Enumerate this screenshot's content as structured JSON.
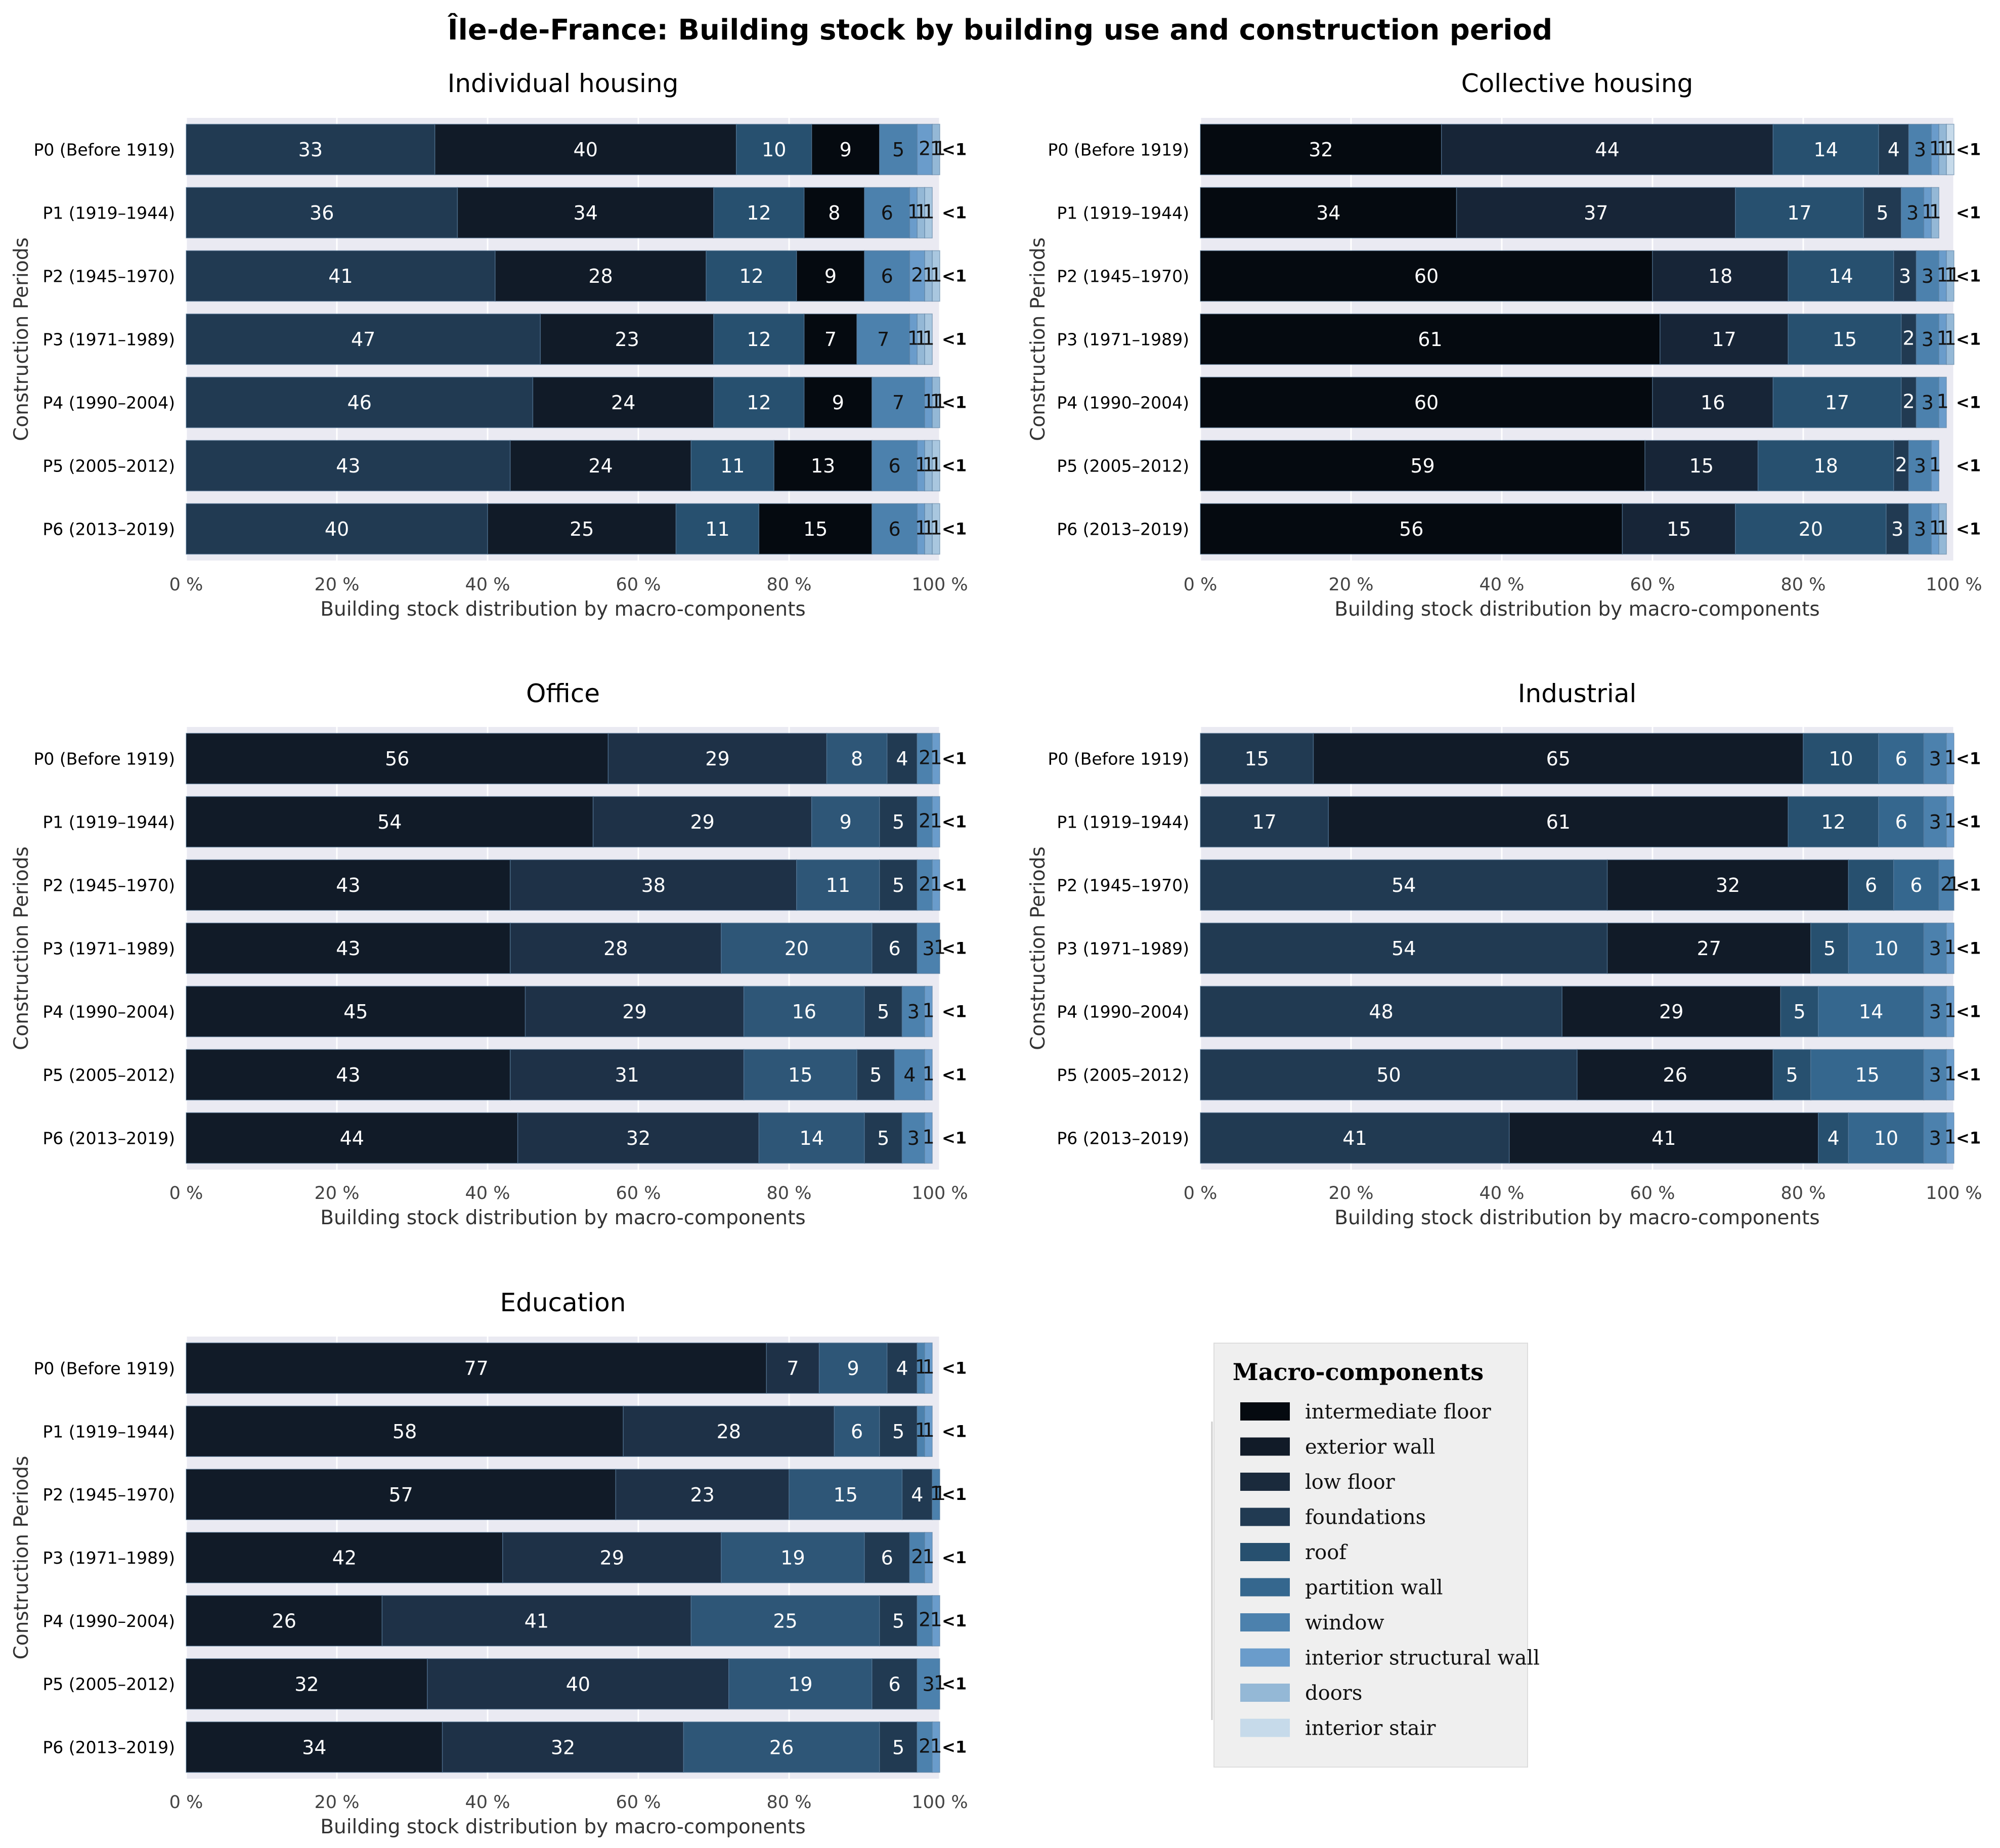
{
  "title": "Île-de-France: Building stock by building use and construction period",
  "legend": {
    "title": "Macro-components",
    "items": [
      {
        "name": "intermediate floor",
        "color": "#050a10"
      },
      {
        "name": "exterior wall",
        "color": "#111b28"
      },
      {
        "name": "low floor",
        "color": "#1a2a3c"
      },
      {
        "name": "foundations",
        "color": "#213a52"
      },
      {
        "name": "roof",
        "color": "#27506f"
      },
      {
        "name": "partition wall",
        "color": "#35678e"
      },
      {
        "name": "window",
        "color": "#4c81ad"
      },
      {
        "name": "interior structural wall",
        "color": "#6a9ccb"
      },
      {
        "name": "doors",
        "color": "#94b8d6"
      },
      {
        "name": "interior stair",
        "color": "#c6daea"
      }
    ]
  },
  "chart_data": [
    {
      "type": "bar",
      "orientation": "horizontal-stacked",
      "title": "Individual housing",
      "xlabel": "Building stock distribution by macro-components",
      "ylabel": "Construction Periods",
      "xlim": [
        0,
        100
      ],
      "xticks": [
        "0 %",
        "20 %",
        "40 %",
        "60 %",
        "80 %",
        "100 %"
      ],
      "categories": [
        "P0 (Before 1919)",
        "P1 (1919–1944)",
        "P2 (1945–1970)",
        "P3 (1971–1989)",
        "P4 (1990–2004)",
        "P5 (2005–2012)",
        "P6 (2013–2019)"
      ],
      "segment_colors": [
        "#213a52",
        "#111b28",
        "#27506f",
        "#050a10",
        "#4c81ad",
        "#6a9ccb",
        "#94b8d6",
        "#a9c7df",
        "#c6daea"
      ],
      "rows": [
        {
          "values": [
            33,
            40,
            10,
            9,
            5,
            2,
            1,
            1
          ],
          "labels": [
            "33",
            "40",
            "10",
            "9",
            "5",
            "2",
            "1",
            "1"
          ],
          "tail": "<1"
        },
        {
          "values": [
            36,
            34,
            12,
            8,
            6,
            1,
            1,
            1
          ],
          "labels": [
            "36",
            "34",
            "12",
            "8",
            "6",
            "1",
            "1",
            "1"
          ],
          "tail": "<1"
        },
        {
          "values": [
            41,
            28,
            12,
            9,
            6,
            2,
            1,
            1
          ],
          "labels": [
            "41",
            "28",
            "12",
            "9",
            "6",
            "2",
            "1",
            "1"
          ],
          "tail": "<1"
        },
        {
          "values": [
            47,
            23,
            12,
            7,
            7,
            1,
            1,
            1
          ],
          "labels": [
            "47",
            "23",
            "12",
            "7",
            "7",
            "1",
            "1",
            "1"
          ],
          "tail": "<1"
        },
        {
          "values": [
            46,
            24,
            12,
            9,
            7,
            1,
            1,
            1
          ],
          "labels": [
            "46",
            "24",
            "12",
            "9",
            "7",
            "1",
            "1",
            "1"
          ],
          "tail": "<1"
        },
        {
          "values": [
            43,
            24,
            11,
            13,
            6,
            1,
            1,
            1
          ],
          "labels": [
            "43",
            "24",
            "11",
            "13",
            "6",
            "1",
            "1",
            "1"
          ],
          "tail": "<1"
        },
        {
          "values": [
            40,
            25,
            11,
            15,
            6,
            1,
            1,
            1
          ],
          "labels": [
            "40",
            "25",
            "11",
            "15",
            "6",
            "1",
            "1",
            "1"
          ],
          "tail": "<1"
        }
      ]
    },
    {
      "type": "bar",
      "orientation": "horizontal-stacked",
      "title": "Collective housing",
      "xlabel": "Building stock distribution by macro-components",
      "ylabel": "Construction Periods",
      "xlim": [
        0,
        100
      ],
      "xticks": [
        "0 %",
        "20 %",
        "40 %",
        "60 %",
        "80 %",
        "100 %"
      ],
      "categories": [
        "P0 (Before 1919)",
        "P1 (1919–1944)",
        "P2 (1945–1970)",
        "P3 (1971–1989)",
        "P4 (1990–2004)",
        "P5 (2005–2012)",
        "P6 (2013–2019)"
      ],
      "segment_colors": [
        "#050a10",
        "#172537",
        "#27506f",
        "#213a52",
        "#4c81ad",
        "#6a9ccb",
        "#94b8d6",
        "#c6daea"
      ],
      "rows": [
        {
          "values": [
            32,
            44,
            14,
            4,
            3,
            1,
            1,
            1
          ],
          "labels": [
            "32",
            "44",
            "14",
            "4",
            "3",
            "1",
            "1",
            "1"
          ],
          "tail": "<1"
        },
        {
          "values": [
            34,
            37,
            17,
            5,
            3,
            1,
            1
          ],
          "labels": [
            "34",
            "37",
            "17",
            "5",
            "3",
            "1",
            "1"
          ],
          "tail": "<1"
        },
        {
          "values": [
            60,
            18,
            14,
            3,
            3,
            1,
            1,
            1
          ],
          "labels": [
            "60",
            "18",
            "14",
            "3",
            "3",
            "1",
            "1",
            "1"
          ],
          "tail": "<1"
        },
        {
          "values": [
            61,
            17,
            15,
            2,
            3,
            1,
            1
          ],
          "labels": [
            "61",
            "17",
            "15",
            "2",
            "3",
            "1",
            "1"
          ],
          "tail": "<1"
        },
        {
          "values": [
            60,
            16,
            17,
            2,
            3,
            1
          ],
          "labels": [
            "60",
            "16",
            "17",
            "2",
            "3",
            "1"
          ],
          "tail": "<1"
        },
        {
          "values": [
            59,
            15,
            18,
            2,
            3,
            1
          ],
          "labels": [
            "59",
            "15",
            "18",
            "2",
            "3",
            "1"
          ],
          "tail": "<1"
        },
        {
          "values": [
            56,
            15,
            20,
            3,
            3,
            1,
            1
          ],
          "labels": [
            "56",
            "15",
            "20",
            "3",
            "3",
            "1",
            "1"
          ],
          "tail": "<1"
        }
      ]
    },
    {
      "type": "bar",
      "orientation": "horizontal-stacked",
      "title": "Office",
      "xlabel": "Building stock distribution by macro-components",
      "ylabel": "Construction Periods",
      "xlim": [
        0,
        100
      ],
      "xticks": [
        "0 %",
        "20 %",
        "40 %",
        "60 %",
        "80 %",
        "100 %"
      ],
      "categories": [
        "P0 (Before 1919)",
        "P1 (1919–1944)",
        "P2 (1945–1970)",
        "P3 (1971–1989)",
        "P4 (1990–2004)",
        "P5 (2005–2012)",
        "P6 (2013–2019)"
      ],
      "segment_colors": [
        "#111b28",
        "#1e3147",
        "#2e5677",
        "#213a52",
        "#4c81ad",
        "#6a9ccb",
        "#94b8d6"
      ],
      "rows": [
        {
          "values": [
            56,
            29,
            8,
            4,
            2,
            1
          ],
          "labels": [
            "56",
            "29",
            "8",
            "4",
            "2",
            "1"
          ],
          "tail": "<1"
        },
        {
          "values": [
            54,
            29,
            9,
            5,
            2,
            1
          ],
          "labels": [
            "54",
            "29",
            "9",
            "5",
            "2",
            "1"
          ],
          "tail": "<1"
        },
        {
          "values": [
            43,
            38,
            11,
            5,
            2,
            1
          ],
          "labels": [
            "43",
            "38",
            "11",
            "5",
            "2",
            "1"
          ],
          "tail": "<1"
        },
        {
          "values": [
            43,
            28,
            20,
            6,
            3,
            1
          ],
          "labels": [
            "43",
            "28",
            "20",
            "6",
            "3",
            "1"
          ],
          "tail": "<1"
        },
        {
          "values": [
            45,
            29,
            16,
            5,
            3,
            1
          ],
          "labels": [
            "45",
            "29",
            "16",
            "5",
            "3",
            "1"
          ],
          "tail": "<1"
        },
        {
          "values": [
            43,
            31,
            15,
            5,
            4,
            1
          ],
          "labels": [
            "43",
            "31",
            "15",
            "5",
            "4",
            "1"
          ],
          "tail": "<1"
        },
        {
          "values": [
            44,
            32,
            14,
            5,
            3,
            1
          ],
          "labels": [
            "44",
            "32",
            "14",
            "5",
            "3",
            "1"
          ],
          "tail": "<1"
        }
      ]
    },
    {
      "type": "bar",
      "orientation": "horizontal-stacked",
      "title": "Industrial",
      "xlabel": "Building stock distribution by macro-components",
      "ylabel": "Construction Periods",
      "xlim": [
        0,
        100
      ],
      "xticks": [
        "0 %",
        "20 %",
        "40 %",
        "60 %",
        "80 %",
        "100 %"
      ],
      "categories": [
        "P0 (Before 1919)",
        "P1 (1919–1944)",
        "P2 (1945–1970)",
        "P3 (1971–1989)",
        "P4 (1990–2004)",
        "P5 (2005–2012)",
        "P6 (2013–2019)"
      ],
      "segment_colors": [
        "#213a52",
        "#111b28",
        "#27506f",
        "#35678e",
        "#4c81ad",
        "#6a9ccb",
        "#94b8d6"
      ],
      "rows": [
        {
          "values": [
            15,
            65,
            10,
            6,
            3,
            1
          ],
          "labels": [
            "15",
            "65",
            "10",
            "6",
            "3",
            "1"
          ],
          "tail": "<1"
        },
        {
          "values": [
            17,
            61,
            12,
            6,
            3,
            1
          ],
          "labels": [
            "17",
            "61",
            "12",
            "6",
            "3",
            "1"
          ],
          "tail": "<1"
        },
        {
          "values": [
            54,
            32,
            6,
            6,
            2,
            1
          ],
          "labels": [
            "54",
            "32",
            "6",
            "6",
            "2",
            "1"
          ],
          "tail": "<1"
        },
        {
          "values": [
            54,
            27,
            5,
            10,
            3,
            1
          ],
          "labels": [
            "54",
            "27",
            "5",
            "10",
            "3",
            "1"
          ],
          "tail": "<1"
        },
        {
          "values": [
            48,
            29,
            5,
            14,
            3,
            1
          ],
          "labels": [
            "48",
            "29",
            "5",
            "14",
            "3",
            "1"
          ],
          "tail": "<1"
        },
        {
          "values": [
            50,
            26,
            5,
            15,
            3,
            1
          ],
          "labels": [
            "50",
            "26",
            "5",
            "15",
            "3",
            "1"
          ],
          "tail": "<1"
        },
        {
          "values": [
            41,
            41,
            4,
            10,
            3,
            1
          ],
          "labels": [
            "41",
            "41",
            "4",
            "10",
            "3",
            "1"
          ],
          "tail": "<1"
        }
      ]
    },
    {
      "type": "bar",
      "orientation": "horizontal-stacked",
      "title": "Education",
      "xlabel": "Building stock distribution by macro-components",
      "ylabel": "Construction Periods",
      "xlim": [
        0,
        100
      ],
      "xticks": [
        "0 %",
        "20 %",
        "40 %",
        "60 %",
        "80 %",
        "100 %"
      ],
      "categories": [
        "P0 (Before 1919)",
        "P1 (1919–1944)",
        "P2 (1945–1970)",
        "P3 (1971–1989)",
        "P4 (1990–2004)",
        "P5 (2005–2012)",
        "P6 (2013–2019)"
      ],
      "segment_colors": [
        "#111b28",
        "#1e3147",
        "#2e5677",
        "#213a52",
        "#4c81ad",
        "#6a9ccb",
        "#94b8d6",
        "#c6daea"
      ],
      "rows": [
        {
          "values": [
            77,
            7,
            9,
            4,
            1,
            1
          ],
          "labels": [
            "77",
            "7",
            "9",
            "4",
            "1",
            "1"
          ],
          "tail": "<1"
        },
        {
          "values": [
            58,
            28,
            6,
            5,
            1,
            1
          ],
          "labels": [
            "58",
            "28",
            "6",
            "5",
            "1",
            "1"
          ],
          "tail": "<1"
        },
        {
          "values": [
            57,
            23,
            15,
            4,
            1,
            1
          ],
          "labels": [
            "57",
            "23",
            "15",
            "4",
            "1",
            "1"
          ],
          "tail": "<1"
        },
        {
          "values": [
            42,
            29,
            19,
            6,
            2,
            1
          ],
          "labels": [
            "42",
            "29",
            "19",
            "6",
            "2",
            "1"
          ],
          "tail": "<1"
        },
        {
          "values": [
            26,
            41,
            25,
            5,
            2,
            1
          ],
          "labels": [
            "26",
            "41",
            "25",
            "5",
            "2",
            "1"
          ],
          "tail": "<1"
        },
        {
          "values": [
            32,
            40,
            19,
            6,
            3,
            1
          ],
          "labels": [
            "32",
            "40",
            "19",
            "6",
            "3",
            "1"
          ],
          "tail": "<1"
        },
        {
          "values": [
            34,
            32,
            26,
            5,
            2,
            1
          ],
          "labels": [
            "34",
            "32",
            "26",
            "5",
            "2",
            "1"
          ],
          "tail": "<1"
        }
      ]
    }
  ]
}
